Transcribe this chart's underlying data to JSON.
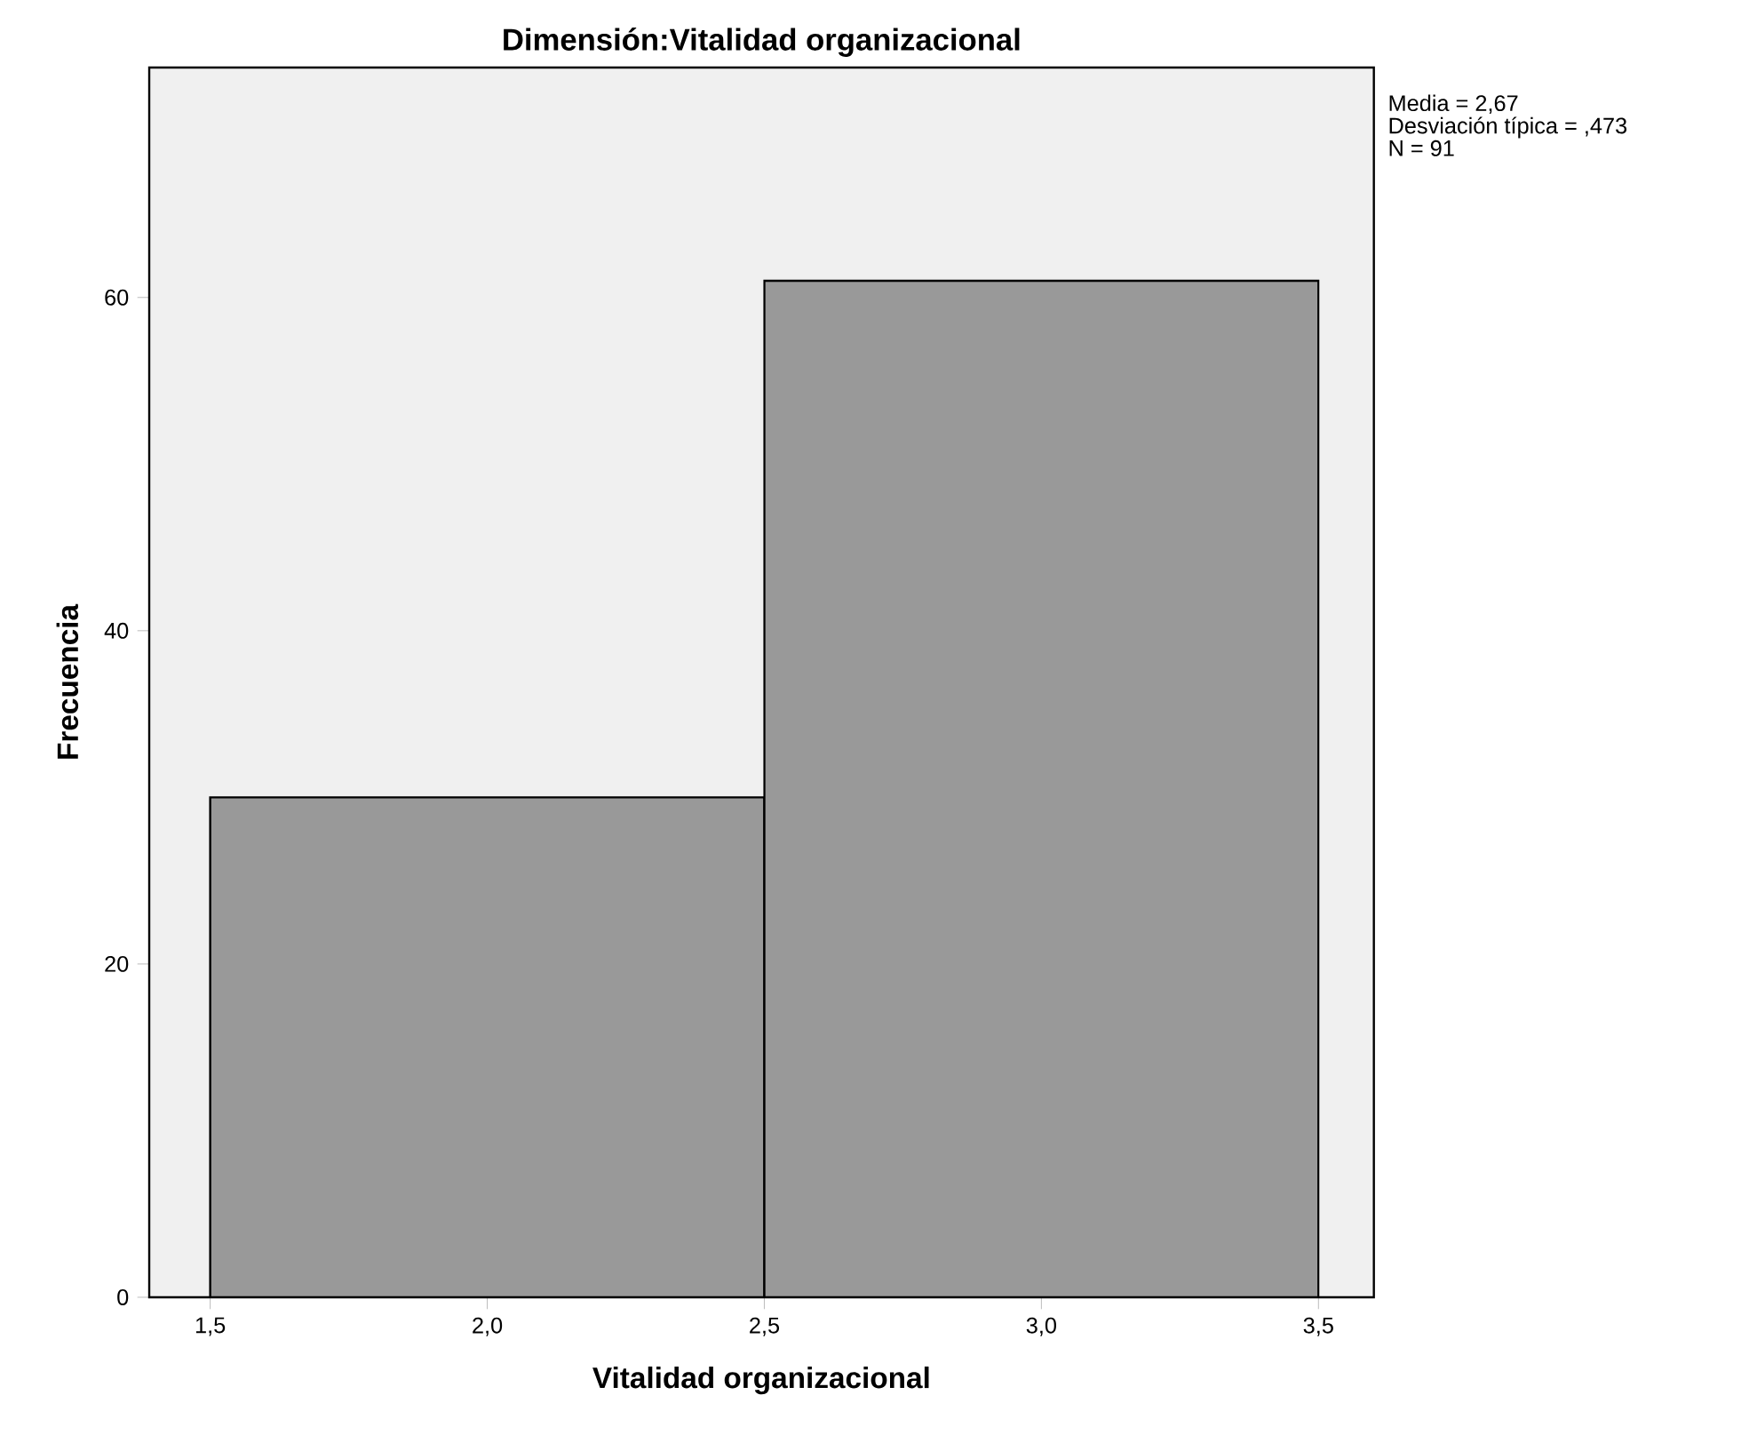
{
  "chart_data": {
    "type": "histogram",
    "title": "Dimensión:Vitalidad organizacional",
    "xlabel": "Vitalidad organizacional",
    "ylabel": "Frecuencia",
    "bins": [
      1.5,
      2.5,
      3.5
    ],
    "values": [
      30,
      61
    ],
    "color": "#999999",
    "xlim": [
      1.39,
      3.6
    ],
    "ylim": [
      0,
      73.8
    ],
    "xticks": [
      {
        "value": 1.5,
        "label": "1,5"
      },
      {
        "value": 2.0,
        "label": "2,0"
      },
      {
        "value": 2.5,
        "label": "2,5"
      },
      {
        "value": 3.0,
        "label": "3,0"
      },
      {
        "value": 3.5,
        "label": "3,5"
      }
    ],
    "yticks": [
      0,
      20,
      40,
      60
    ],
    "annotations": [
      "Media = 2,67",
      "Desviación típica = ,473",
      "N = 91"
    ],
    "grid": false
  }
}
